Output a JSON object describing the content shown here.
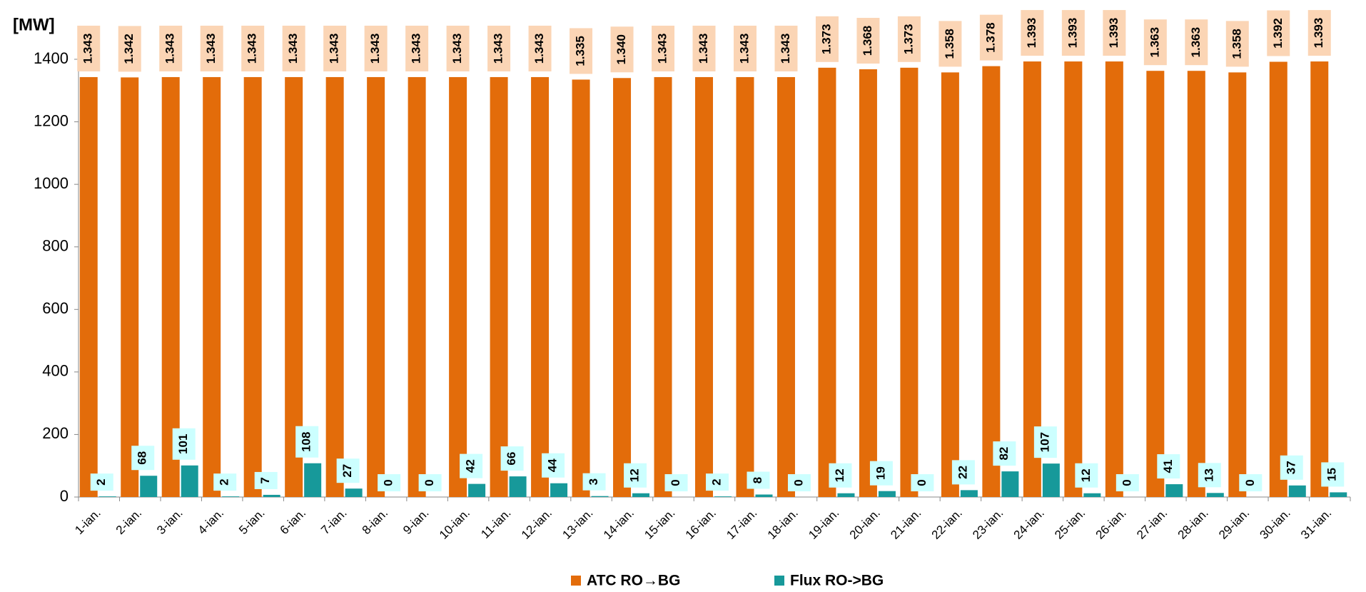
{
  "chart_data": {
    "type": "bar",
    "ylabel": "[MW]",
    "categories": [
      "1-ian.",
      "2-ian.",
      "3-ian.",
      "4-ian.",
      "5-ian.",
      "6-ian.",
      "7-ian.",
      "8-ian.",
      "9-ian.",
      "10-ian.",
      "11-ian.",
      "12-ian.",
      "13-ian.",
      "14-ian.",
      "15-ian.",
      "16-ian.",
      "17-ian.",
      "18-ian.",
      "19-ian.",
      "20-ian.",
      "21-ian.",
      "22-ian.",
      "23-ian.",
      "24-ian.",
      "25-ian.",
      "26-ian.",
      "27-ian.",
      "28-ian.",
      "29-ian.",
      "30-ian.",
      "31-ian."
    ],
    "series": [
      {
        "name": "ATC RO→BG",
        "color": "#e36c0a",
        "label_bg": "#fbd5b5",
        "values": [
          1343,
          1342,
          1343,
          1343,
          1343,
          1343,
          1343,
          1343,
          1343,
          1343,
          1343,
          1343,
          1335,
          1340,
          1343,
          1343,
          1343,
          1343,
          1373,
          1368,
          1373,
          1358,
          1378,
          1393,
          1393,
          1393,
          1363,
          1363,
          1358,
          1392,
          1393
        ],
        "value_labels": [
          "1.343",
          "1.342",
          "1.343",
          "1.343",
          "1.343",
          "1.343",
          "1.343",
          "1.343",
          "1.343",
          "1.343",
          "1.343",
          "1.343",
          "1.335",
          "1.340",
          "1.343",
          "1.343",
          "1.343",
          "1.343",
          "1.373",
          "1.368",
          "1.373",
          "1.358",
          "1.378",
          "1.393",
          "1.393",
          "1.393",
          "1.363",
          "1.363",
          "1.358",
          "1.392",
          "1.393"
        ]
      },
      {
        "name": "Flux RO->BG",
        "color": "#17999a",
        "label_bg": "#ccffff",
        "values": [
          2,
          68,
          101,
          2,
          7,
          108,
          27,
          0,
          0,
          42,
          66,
          44,
          3,
          12,
          0,
          2,
          8,
          0,
          12,
          19,
          0,
          22,
          82,
          107,
          12,
          0,
          41,
          13,
          0,
          37,
          15
        ]
      }
    ],
    "ylim": [
      0,
      1400
    ],
    "yticks": [
      0,
      200,
      400,
      600,
      800,
      1000,
      1200,
      1400
    ],
    "legend": "bottom"
  }
}
